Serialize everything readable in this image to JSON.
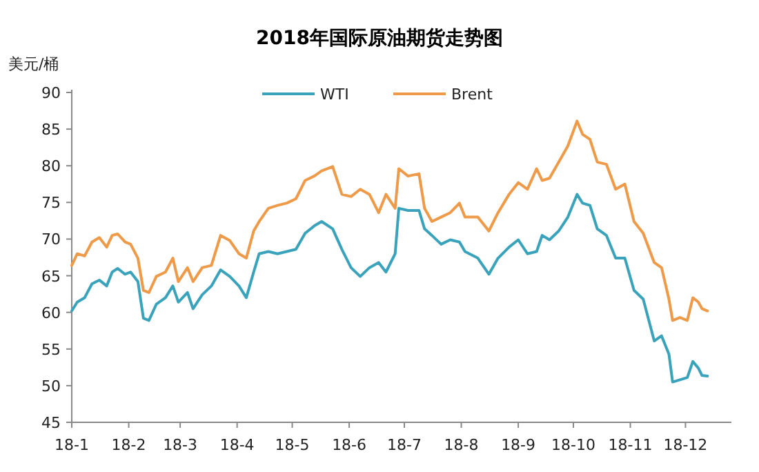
{
  "chart_data": {
    "type": "line",
    "title": "2018年国际原油期货走势图",
    "ylabel": "美元/桶",
    "xlim": [
      "2018-01-01",
      "2018-12-26"
    ],
    "xticks": [
      {
        "value": "2018-01-01",
        "label": "18-1"
      },
      {
        "value": "2018-02-01",
        "label": "18-2"
      },
      {
        "value": "2018-03-01",
        "label": "18-3"
      },
      {
        "value": "2018-04-01",
        "label": "18-4"
      },
      {
        "value": "2018-05-01",
        "label": "18-5"
      },
      {
        "value": "2018-06-01",
        "label": "18-6"
      },
      {
        "value": "2018-07-01",
        "label": "18-7"
      },
      {
        "value": "2018-08-01",
        "label": "18-8"
      },
      {
        "value": "2018-09-01",
        "label": "18-9"
      },
      {
        "value": "2018-10-01",
        "label": "18-10"
      },
      {
        "value": "2018-11-01",
        "label": "18-11"
      },
      {
        "value": "2018-12-01",
        "label": "18-12"
      }
    ],
    "ylim": [
      45,
      90
    ],
    "yticks": [
      45,
      50,
      55,
      60,
      65,
      70,
      75,
      80,
      85,
      90
    ],
    "legend": "top",
    "x": [
      "2018-01-01",
      "2018-01-04",
      "2018-01-08",
      "2018-01-12",
      "2018-01-16",
      "2018-01-20",
      "2018-01-23",
      "2018-01-26",
      "2018-01-30",
      "2018-02-02",
      "2018-02-06",
      "2018-02-09",
      "2018-02-12",
      "2018-02-16",
      "2018-02-21",
      "2018-02-25",
      "2018-02-28",
      "2018-03-05",
      "2018-03-08",
      "2018-03-13",
      "2018-03-18",
      "2018-03-23",
      "2018-03-28",
      "2018-04-02",
      "2018-04-06",
      "2018-04-10",
      "2018-04-13",
      "2018-04-18",
      "2018-04-23",
      "2018-04-28",
      "2018-05-03",
      "2018-05-08",
      "2018-05-13",
      "2018-05-17",
      "2018-05-23",
      "2018-05-28",
      "2018-06-02",
      "2018-06-07",
      "2018-06-12",
      "2018-06-17",
      "2018-06-21",
      "2018-06-26",
      "2018-06-28",
      "2018-07-03",
      "2018-07-09",
      "2018-07-12",
      "2018-07-16",
      "2018-07-21",
      "2018-07-26",
      "2018-07-31",
      "2018-08-03",
      "2018-08-10",
      "2018-08-16",
      "2018-08-21",
      "2018-08-27",
      "2018-09-01",
      "2018-09-06",
      "2018-09-11",
      "2018-09-14",
      "2018-09-18",
      "2018-09-23",
      "2018-09-28",
      "2018-10-03",
      "2018-10-06",
      "2018-10-10",
      "2018-10-14",
      "2018-10-19",
      "2018-10-24",
      "2018-10-29",
      "2018-11-03",
      "2018-11-08",
      "2018-11-14",
      "2018-11-18",
      "2018-11-22",
      "2018-11-24",
      "2018-11-28",
      "2018-12-02",
      "2018-12-05",
      "2018-12-08",
      "2018-12-10",
      "2018-12-13"
    ],
    "series": [
      {
        "name": "WTI",
        "color": "#3aa3bb",
        "values": [
          60.2,
          61.4,
          62,
          63.9,
          64.4,
          63.6,
          65.5,
          66,
          65.2,
          65.5,
          64.2,
          59.2,
          58.9,
          61.1,
          62,
          63.6,
          61.4,
          62.7,
          60.5,
          62.4,
          63.6,
          65.8,
          64.9,
          63.6,
          62,
          65.5,
          68,
          68.3,
          68,
          68.3,
          68.6,
          70.8,
          71.8,
          72.4,
          71.4,
          68.6,
          66.1,
          64.9,
          66.1,
          66.8,
          65.5,
          68,
          74.2,
          73.9,
          73.9,
          71.4,
          70.5,
          69.3,
          69.9,
          69.6,
          68.3,
          67.4,
          65.2,
          67.4,
          68.9,
          69.9,
          68,
          68.3,
          70.5,
          69.9,
          71.1,
          73,
          76.1,
          74.9,
          74.6,
          71.4,
          70.5,
          67.4,
          67.4,
          63,
          61.8,
          56.1,
          56.8,
          54.3,
          50.5,
          50.8,
          51.1,
          53.3,
          52.4,
          51.4,
          51.3
        ]
      },
      {
        "name": "Brent",
        "color": "#ee9a48",
        "values": [
          66.4,
          68,
          67.7,
          69.6,
          70.2,
          68.9,
          70.5,
          70.7,
          69.6,
          69.3,
          67.4,
          63,
          62.7,
          64.9,
          65.5,
          67.4,
          64.2,
          66.1,
          64.2,
          66.1,
          66.4,
          70.5,
          69.8,
          68,
          67.4,
          71.1,
          72.4,
          74.2,
          74.6,
          74.9,
          75.5,
          78,
          78.6,
          79.3,
          79.9,
          76.1,
          75.8,
          76.8,
          76.1,
          73.6,
          76.1,
          74.2,
          79.6,
          78.6,
          78.9,
          74.2,
          72.4,
          73,
          73.6,
          74.9,
          73,
          73,
          71.1,
          73.6,
          76.1,
          77.7,
          76.8,
          79.6,
          78,
          78.3,
          80.5,
          82.7,
          86.1,
          84.3,
          83.6,
          80.5,
          80.2,
          76.8,
          77.5,
          72.4,
          70.8,
          66.8,
          66.1,
          61.8,
          58.9,
          59.3,
          58.9,
          62,
          61.4,
          60.5,
          60.2
        ]
      }
    ]
  }
}
